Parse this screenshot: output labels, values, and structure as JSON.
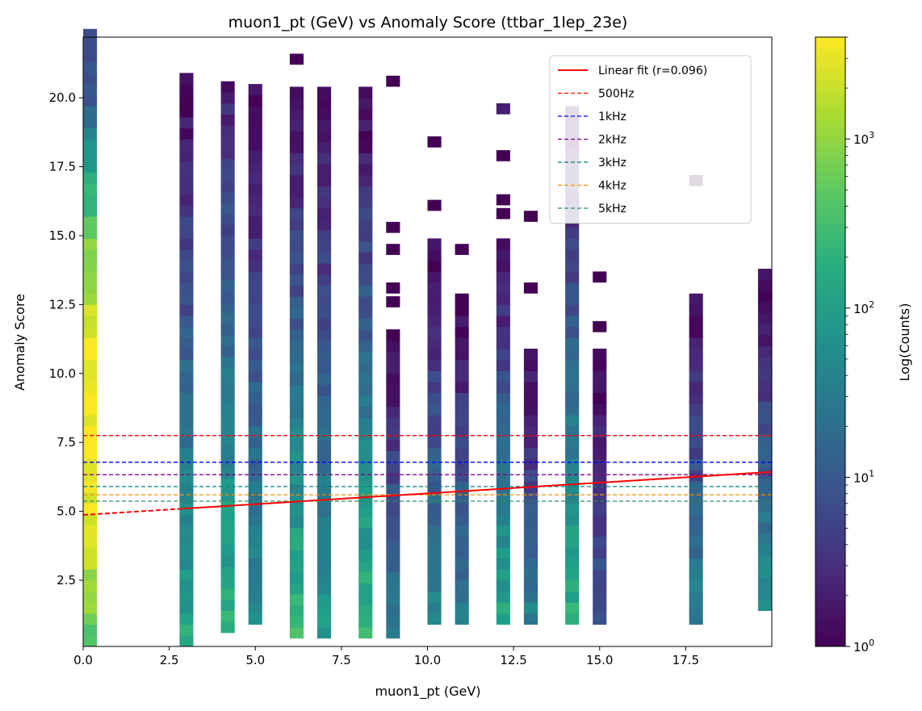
{
  "chart_data": {
    "type": "heatmap",
    "title": "muon1_pt (GeV) vs Anomaly Score (ttbar_1lep_23e)",
    "xlabel": "muon1_pt (GeV)",
    "ylabel": "Anomaly Score",
    "xlim": [
      0,
      20
    ],
    "ylim": [
      0.1,
      22.2
    ],
    "x_ticks": [
      0.0,
      2.5,
      5.0,
      7.5,
      10.0,
      12.5,
      15.0,
      17.5
    ],
    "x_tick_labels": [
      "0.0",
      "2.5",
      "5.0",
      "7.5",
      "10.0",
      "12.5",
      "15.0",
      "17.5"
    ],
    "y_ticks": [
      2.5,
      5.0,
      7.5,
      10.0,
      12.5,
      15.0,
      17.5,
      20.0
    ],
    "y_tick_labels": [
      "2.5",
      "5.0",
      "7.5",
      "10.0",
      "12.5",
      "15.0",
      "17.5",
      "20.0"
    ],
    "colorbar": {
      "label": "Log(Counts)",
      "scale": "log",
      "range": [
        1,
        4000
      ],
      "ticks": [
        1,
        10,
        100,
        1000
      ],
      "tick_base": "10",
      "tick_exponents": [
        "0",
        "1",
        "2",
        "3"
      ],
      "colormap": "viridis"
    },
    "columns": [
      {
        "x": 0.2,
        "ymin": 0.1,
        "ymax": 22.2,
        "profile": "peak",
        "peak_y": 8.0,
        "min_count": 8,
        "max_count": 4000
      },
      {
        "x": 3.0,
        "ymin": 0.1,
        "ymax": 20.7,
        "profile": "decay",
        "min_count": 1,
        "max_count": 150
      },
      {
        "x": 4.2,
        "ymin": 0.6,
        "ymax": 20.3,
        "profile": "decay",
        "min_count": 2,
        "max_count": 200
      },
      {
        "x": 5.0,
        "ymin": 0.9,
        "ymax": 20.3,
        "profile": "decay",
        "min_count": 1,
        "max_count": 60
      },
      {
        "x": 6.2,
        "ymin": 0.4,
        "ymax": 20.3,
        "profile": "decay",
        "min_count": 1,
        "max_count": 250
      },
      {
        "x": 7.0,
        "ymin": 0.4,
        "ymax": 20.3,
        "profile": "decay",
        "min_count": 1,
        "max_count": 90
      },
      {
        "x": 8.2,
        "ymin": 0.4,
        "ymax": 20.3,
        "profile": "decay",
        "min_count": 1,
        "max_count": 250
      },
      {
        "x": 9.0,
        "ymin": 0.4,
        "ymax": 11.4,
        "profile": "decay",
        "min_count": 1,
        "max_count": 40
      },
      {
        "x": 10.2,
        "ymin": 0.9,
        "ymax": 14.9,
        "profile": "decay",
        "min_count": 1,
        "max_count": 50
      },
      {
        "x": 11.0,
        "ymin": 0.9,
        "ymax": 12.8,
        "profile": "decay",
        "min_count": 1,
        "max_count": 30
      },
      {
        "x": 12.2,
        "ymin": 0.9,
        "ymax": 14.9,
        "profile": "decay",
        "min_count": 1,
        "max_count": 150
      },
      {
        "x": 13.0,
        "ymin": 0.9,
        "ymax": 10.6,
        "profile": "decay",
        "min_count": 1,
        "max_count": 40
      },
      {
        "x": 14.2,
        "ymin": 0.9,
        "ymax": 19.6,
        "profile": "decay",
        "min_count": 1,
        "max_count": 200
      },
      {
        "x": 15.0,
        "ymin": 0.9,
        "ymax": 10.6,
        "profile": "decay",
        "min_count": 1,
        "max_count": 10
      },
      {
        "x": 17.8,
        "ymin": 0.9,
        "ymax": 12.8,
        "profile": "decay",
        "min_count": 1,
        "max_count": 40
      },
      {
        "x": 19.8,
        "ymin": 1.4,
        "ymax": 13.6,
        "profile": "decay",
        "min_count": 1,
        "max_count": 60
      }
    ],
    "isolated_cells": [
      {
        "x": 6.2,
        "y": 21.4,
        "count": 1
      },
      {
        "x": 9.0,
        "y": 20.6,
        "count": 1
      },
      {
        "x": 10.2,
        "y": 18.4,
        "count": 1
      },
      {
        "x": 9.0,
        "y": 15.3,
        "count": 1
      },
      {
        "x": 9.0,
        "y": 14.5,
        "count": 1
      },
      {
        "x": 9.0,
        "y": 13.1,
        "count": 1
      },
      {
        "x": 9.0,
        "y": 12.6,
        "count": 1
      },
      {
        "x": 10.2,
        "y": 16.1,
        "count": 1
      },
      {
        "x": 11.0,
        "y": 14.5,
        "count": 1
      },
      {
        "x": 12.2,
        "y": 19.6,
        "count": 2
      },
      {
        "x": 12.2,
        "y": 17.9,
        "count": 1
      },
      {
        "x": 12.2,
        "y": 16.3,
        "count": 1
      },
      {
        "x": 12.2,
        "y": 15.8,
        "count": 1
      },
      {
        "x": 13.0,
        "y": 15.7,
        "count": 1
      },
      {
        "x": 13.0,
        "y": 13.1,
        "count": 1
      },
      {
        "x": 15.0,
        "y": 13.5,
        "count": 1
      },
      {
        "x": 15.0,
        "y": 11.7,
        "count": 1
      },
      {
        "x": 17.8,
        "y": 17.0,
        "count": 1
      }
    ],
    "fit": {
      "label": "Linear fit (r=0.096)",
      "x0": 0,
      "y0": 4.87,
      "x1": 20,
      "y1": 6.43,
      "dashed_until_x": 2.9,
      "color": "#ff0000"
    },
    "thresholds": [
      {
        "label": "500Hz",
        "y": 7.75,
        "color": "#ff0000"
      },
      {
        "label": "1kHz",
        "y": 6.78,
        "color": "#0000ff"
      },
      {
        "label": "2kHz",
        "y": 6.33,
        "color": "#800080"
      },
      {
        "label": "3kHz",
        "y": 5.9,
        "color": "#008080"
      },
      {
        "label": "4kHz",
        "y": 5.6,
        "color": "#ff8c00"
      },
      {
        "label": "5kHz",
        "y": 5.37,
        "color": "#2e8b57"
      }
    ],
    "legend_position": "upper right",
    "grid": false
  }
}
